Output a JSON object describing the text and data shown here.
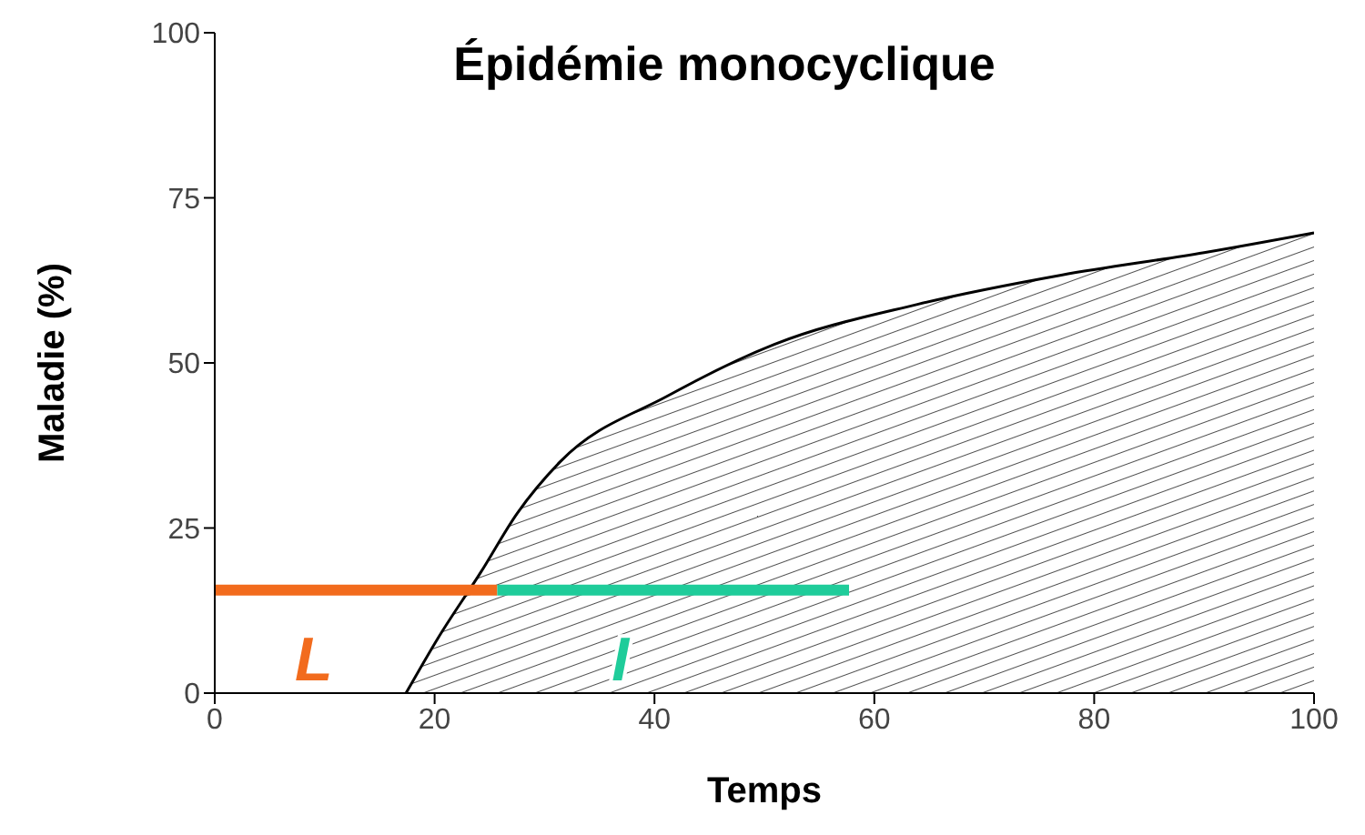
{
  "chart_data": {
    "type": "area",
    "title": "Épidémie monocyclique",
    "xlabel": "Temps",
    "ylabel": "Maladie (%)",
    "xlim": [
      0,
      100
    ],
    "xticks": [
      0,
      20,
      40,
      60,
      80,
      100
    ],
    "ylim": [
      0,
      100
    ],
    "yticks": [
      0,
      25,
      50,
      75,
      100
    ],
    "grid": false,
    "legend": false,
    "marker": "none",
    "line_style": "solid",
    "series": [
      {
        "color": "#000000",
        "x": [
          17.4,
          20.3,
          24.2,
          27.5,
          31.4,
          41.2,
          50.9,
          64,
          77,
          90,
          100
        ],
        "values": [
          0,
          8.3,
          18.3,
          27.2,
          35,
          45,
          52.8,
          58.9,
          63.3,
          66.7,
          69.7
        ]
      },
      {
        "type": "line",
        "name": "L",
        "color": "#f26b1d",
        "x": [
          0,
          25.7
        ],
        "values": [
          15.6,
          15.6
        ]
      },
      {
        "type": "line",
        "name": "I",
        "color": "#1fcc9a",
        "x": [
          25.7,
          57.7
        ],
        "values": [
          15.6,
          15.6
        ]
      }
    ]
  }
}
